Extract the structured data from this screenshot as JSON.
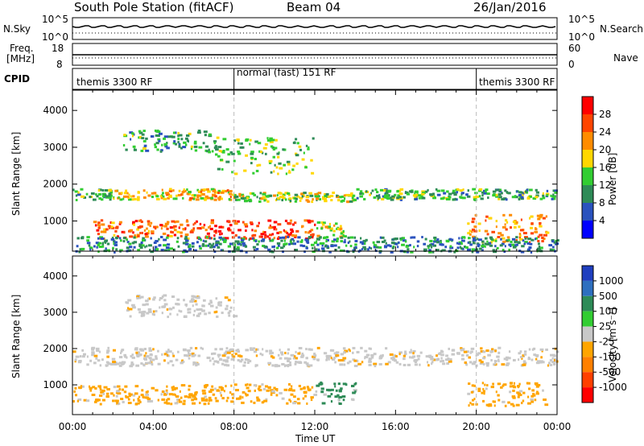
{
  "header": {
    "station": "South Pole Station (fitACF)",
    "beam": "Beam 04",
    "date": "26/Jan/2016"
  },
  "strips": {
    "nsky_label": "N.Sky",
    "nsearch_label": "N.Search",
    "freq_label_1": "Freq.",
    "freq_label_2": "[MHz]",
    "nave_label": "Nave",
    "cpid_label": "CPID",
    "nsky_ticks": [
      "10^5",
      "10^0"
    ],
    "nsearch_ticks": [
      "10^5",
      "10^0"
    ],
    "freq_ticks": [
      "18",
      "8"
    ],
    "nave_ticks": [
      "60",
      "0"
    ]
  },
  "cpid_segments": [
    {
      "label": "themis 3300 RF",
      "start_hour": 0
    },
    {
      "label": "normal (fast) 151 RF",
      "start_hour": 8
    },
    {
      "label": "themis 3300 RF",
      "start_hour": 20
    }
  ],
  "chart_data": [
    {
      "type": "heatmap",
      "ylabel": "Slant Range [km]",
      "xlabel": "",
      "xlim": [
        0,
        24
      ],
      "ylim": [
        180,
        4550
      ],
      "yticks": [
        1000,
        2000,
        3000,
        4000
      ],
      "colorbar": {
        "label": "Power [dB]",
        "ticks": [
          4,
          8,
          12,
          16,
          20,
          24,
          28
        ],
        "range": [
          0,
          30
        ],
        "colors": [
          "#0000ff",
          "#2a52be",
          "#2e8b57",
          "#32cd32",
          "#ffd700",
          "#ff8c00",
          "#ff4500",
          "#ff0000"
        ]
      },
      "series": [
        {
          "name": "",
          "values": [
            {
              "t": [
                0,
                2
              ],
              "r": [
                1600,
                1900
              ],
              "level": 0.42
            },
            {
              "t": [
                2,
                8
              ],
              "r": [
                1600,
                1900
              ],
              "level": 0.6
            },
            {
              "t": [
                8,
                14
              ],
              "r": [
                1550,
                1800
              ],
              "level": 0.5
            },
            {
              "t": [
                14,
                24
              ],
              "r": [
                1600,
                1900
              ],
              "level": 0.38
            },
            {
              "t": [
                1,
                6
              ],
              "r": [
                550,
                1050
              ],
              "level": 0.78
            },
            {
              "t": [
                6,
                12
              ],
              "r": [
                550,
                1050
              ],
              "level": 0.85
            },
            {
              "t": [
                12,
                13.5
              ],
              "r": [
                600,
                1000
              ],
              "level": 0.55
            },
            {
              "t": [
                19.5,
                23.5
              ],
              "r": [
                450,
                1200
              ],
              "level": 0.7
            },
            {
              "t": [
                2.5,
                7
              ],
              "r": [
                2900,
                3500
              ],
              "level": 0.35
            },
            {
              "t": [
                7,
                12
              ],
              "r": [
                2300,
                3300
              ],
              "level": 0.45
            },
            {
              "t": [
                0,
                24
              ],
              "r": [
                180,
                600
              ],
              "level": 0.3
            }
          ]
        }
      ]
    },
    {
      "type": "heatmap",
      "ylabel": "Slant Range [km]",
      "xlabel": "Time UT",
      "xlim": [
        0,
        24
      ],
      "ylim": [
        180,
        4550
      ],
      "yticks": [
        1000,
        2000,
        3000,
        4000
      ],
      "xticks": [
        "00:00",
        "04:00",
        "08:00",
        "12:00",
        "16:00",
        "20:00",
        "00:00"
      ],
      "colorbar": {
        "label": "Velocity [m s⁻¹]",
        "ticks": [
          1000,
          500,
          100,
          25,
          -25,
          -100,
          -500,
          -1000
        ],
        "colors": [
          "#1f3fbf",
          "#2e6fbf",
          "#2e8b57",
          "#32cd32",
          "#c8c8c8",
          "#ffa500",
          "#ff8000",
          "#ff4000",
          "#ff0000"
        ]
      },
      "series": [
        {
          "name": "",
          "values": [
            {
              "t": [
                0,
                24
              ],
              "r": [
                1550,
                2050
              ],
              "level": "gray"
            },
            {
              "t": [
                0,
                5
              ],
              "r": [
                500,
                1000
              ],
              "level": "orange"
            },
            {
              "t": [
                5,
                12
              ],
              "r": [
                500,
                1050
              ],
              "level": "orange"
            },
            {
              "t": [
                12,
                14
              ],
              "r": [
                500,
                1100
              ],
              "level": "green"
            },
            {
              "t": [
                19.5,
                23.5
              ],
              "r": [
                450,
                1100
              ],
              "level": "orange"
            },
            {
              "t": [
                2.5,
                8
              ],
              "r": [
                2900,
                3500
              ],
              "level": "gray"
            }
          ]
        }
      ]
    }
  ]
}
